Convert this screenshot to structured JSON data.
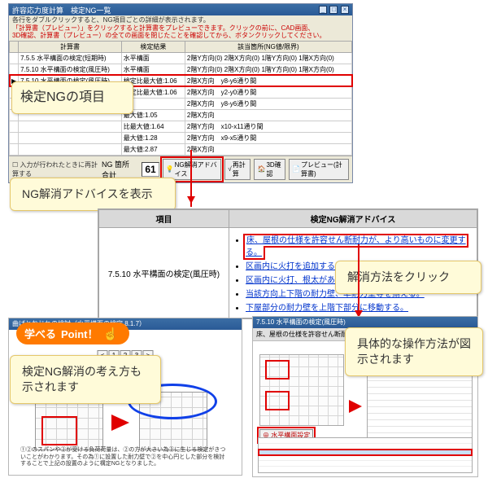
{
  "window": {
    "title": "許容応力度計算　検定NG一覧",
    "note1": "各行をダブルクリックすると、NG項目ごとの詳細が表示されます。",
    "note2": "「計算書（プレビュー）」をクリックすると計算書をプレビューできます。クリックの前に、CAD画面、",
    "note3": "3D確認、計算書（プレビュー）の全ての画面を閉じたことを確認してから、ボタンクリックしてください。",
    "columns": [
      "",
      "計算書",
      "検定結果",
      "該当箇所(NG値/限界)"
    ],
    "rows": [
      {
        "chk": "",
        "c1": "7.5.5  水平構面の検定(短期時)",
        "c2": "水平構面",
        "c3": "2階Y方向(0)  2階X方向(0)  1階Y方向(0)  1階X方向(0)"
      },
      {
        "chk": "",
        "c1": "7.5.10 水平構面の検定(風圧時)",
        "c2": "水平構面",
        "c3": "2階Y方向(0)  2階X方向(0)  1階Y方向(0)  1階X方向(0)"
      },
      {
        "chk": "▶",
        "c1": "7.5.10 水平構面の検定(風圧時)",
        "c2": "検定比最大値:1.06",
        "c3": "2階X方向　y8-y6通り間",
        "hi": true
      },
      {
        "chk": "",
        "c1": "7.5.10 水平構面の検定(風圧時)",
        "c2": "検定比最大値:1.06",
        "c3": "2階X方向　y2-y0通り間"
      },
      {
        "chk": "",
        "c1": "7.5.10 水平構面の検定(風圧時)",
        "c2": "",
        "c3": "2階X方向　y8-y6通り間"
      },
      {
        "chk": "",
        "c1": "",
        "c2": "最大値:1.05",
        "c3": "2階X方向　"
      },
      {
        "chk": "",
        "c1": "",
        "c2": "比最大値:1.64",
        "c3": "2階Y方向　x10-x11通り間"
      },
      {
        "chk": "",
        "c1": "",
        "c2": "最大値:1.28",
        "c3": "2階Y方向　x9-x5通り間"
      },
      {
        "chk": "",
        "c1": "",
        "c2": "最大値:2.87",
        "c3": "2階X方向"
      }
    ],
    "footer": {
      "count_label": "NG 箇所合計",
      "count": "61",
      "btn_advice": "NG解消アドバイス",
      "btn_recalc": "再計算",
      "btn_3d": "3D確認",
      "btn_preview": "プレビュー(計算書)",
      "check_note": "入力が行われたときに再計算する"
    }
  },
  "callouts": {
    "c1": "検定NGの項目",
    "c2": "NG解消アドバイスを表示",
    "c3": "解消方法をクリック",
    "c4": "具体的な操作方法が図示されます",
    "c5": "検定NG解消の考え方も示されます"
  },
  "advice": {
    "col1": "項目",
    "col2": "検定NG解消アドバイス",
    "row_label": "7.5.10 水平構面の検定(風圧時)",
    "items": [
      "床、屋根の仕様を許容せん断耐力が、より高いものに変更する。",
      "区画内に火打を追加する。",
      "区画内に火打、根太がある場合それらのせいを高くする。",
      "当該方向上下階の耐力壁、準耐力壁等を揃える。",
      "下屋部分の耐力壁を上階下部分に移動する。"
    ]
  },
  "point_badge": {
    "pre": "学べる",
    "main": "Point！"
  },
  "shot_left": {
    "title": "曲げとねじれの検討（水平構面の検定 8.1.7）",
    "pager": [
      "<",
      "1",
      "2",
      "3",
      ">"
    ],
    "caption": "①②のスパンや②が受ける負荷荷量は、②の方が大きい為②に生じる検定がきついことがわかります。その為①に設置した耐力壁で②を中心円とした部分を検討することで上記の設置のように構定NGとなりました。"
  },
  "shot_right": {
    "title": "7.5.10 水平構面の検定(風圧時)",
    "subtitle": "床、屋根の仕様を許容せん断耐力が、より高いものに変更する。",
    "btn": "⊕ 水平構面設定"
  }
}
